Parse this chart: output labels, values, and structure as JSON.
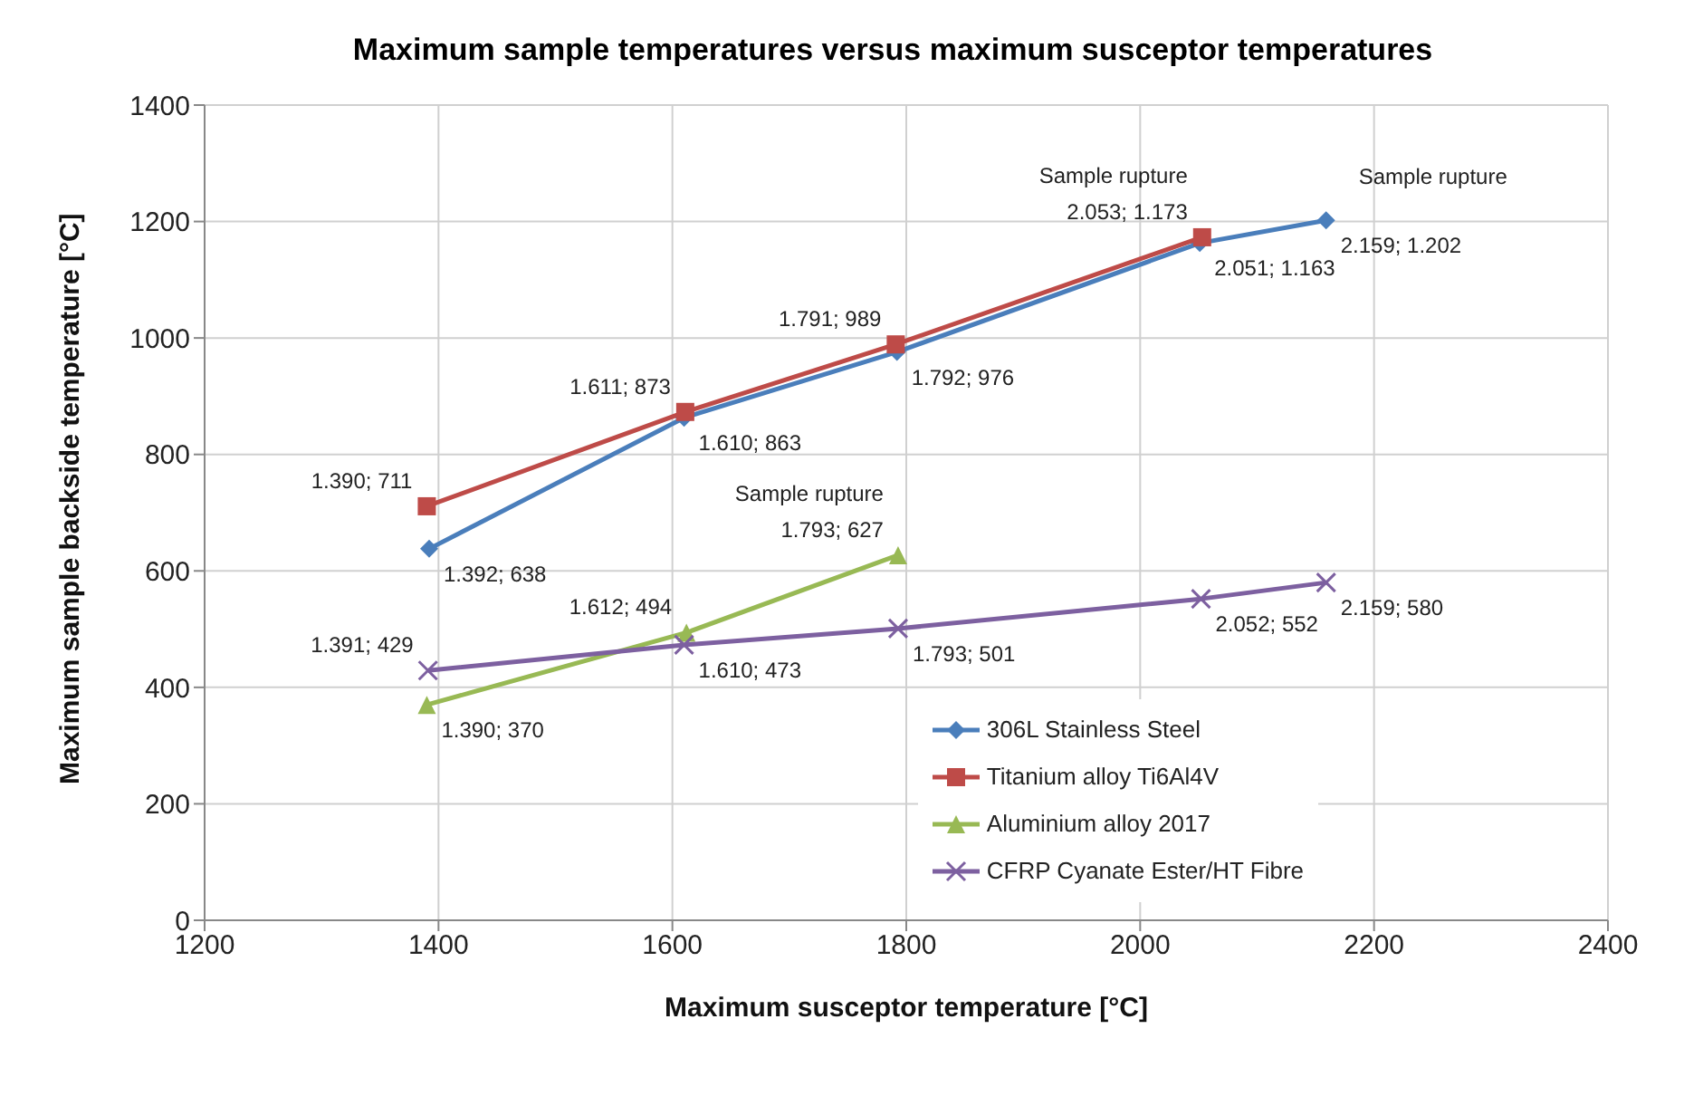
{
  "chart_data": {
    "type": "line",
    "title": "Maximum sample temperatures versus maximum susceptor temperatures",
    "xlabel": "Maximum susceptor temperature [°C]",
    "ylabel": "Maximum sample backside temperature [°C]",
    "xlim": [
      1200,
      2400
    ],
    "xticks": [
      1200,
      1400,
      1600,
      1800,
      2000,
      2200,
      2400
    ],
    "ylim": [
      0,
      1400
    ],
    "yticks": [
      0,
      200,
      400,
      600,
      800,
      1000,
      1200,
      1400
    ],
    "grid": true,
    "legend": "bottom right",
    "series": [
      {
        "name": "306L Stainless Steel",
        "color": "#4a7ebb",
        "marker": "diamond",
        "x": [
          1392,
          1610,
          1792,
          2051,
          2159
        ],
        "values": [
          638,
          863,
          976,
          1163,
          1202
        ],
        "value_labels": [
          "1.392; 638",
          "1.610; 863",
          "1.792; 976",
          "2.051; 1.163",
          "2.159; 1.202"
        ]
      },
      {
        "name": "Titanium alloy Ti6Al4V",
        "color": "#be4b48",
        "marker": "square",
        "x": [
          1390,
          1611,
          1791,
          2053
        ],
        "values": [
          711,
          873,
          989,
          1173
        ],
        "value_labels": [
          "1.390; 711",
          "1.611; 873",
          "1.791; 989",
          "2.053; 1.173"
        ]
      },
      {
        "name": "Aluminium alloy 2017",
        "color": "#98b954",
        "marker": "triangle",
        "x": [
          1390,
          1612,
          1793
        ],
        "values": [
          370,
          494,
          627
        ],
        "value_labels": [
          "1.390; 370",
          "1.612; 494",
          "1.793; 627"
        ]
      },
      {
        "name": "CFRP Cyanate Ester/HT Fibre",
        "color": "#7d60a0",
        "marker": "cross",
        "x": [
          1391,
          1610,
          1793,
          2052,
          2159
        ],
        "values": [
          429,
          473,
          501,
          552,
          580
        ],
        "value_labels": [
          "1.391; 429",
          "1.610; 473",
          "1.793; 501",
          "2.052; 552",
          "2.159; 580"
        ]
      }
    ],
    "annotations": [
      {
        "text": "Sample rupture",
        "x": 2053,
        "y": 1173
      },
      {
        "text": "Sample rupture",
        "x": 2159,
        "y": 1202
      },
      {
        "text": "Sample rupture",
        "x": 1793,
        "y": 627
      }
    ]
  }
}
